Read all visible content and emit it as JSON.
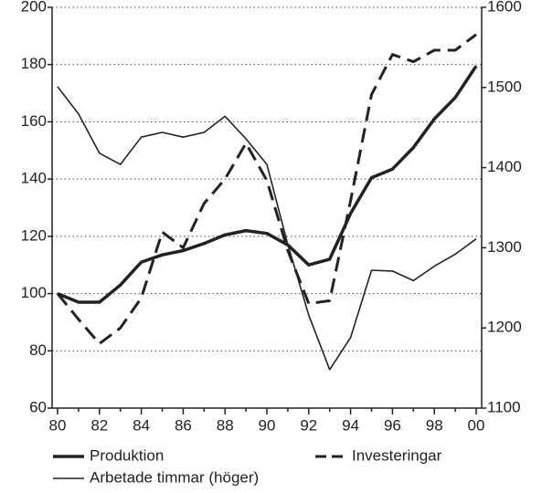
{
  "chart_data": {
    "type": "line",
    "categories": [
      "80",
      null,
      "82",
      null,
      "84",
      null,
      "86",
      null,
      "88",
      null,
      "90",
      null,
      "92",
      null,
      "94",
      null,
      "96",
      null,
      "98",
      null,
      "00"
    ],
    "series": [
      {
        "name": "Produktion",
        "color": "#222222",
        "width": 3.5,
        "dashed": false,
        "axis": "y",
        "values": [
          100,
          97,
          97,
          103,
          111,
          113.5,
          115,
          117.5,
          120.5,
          122,
          121,
          117,
          110,
          112,
          128,
          140.5,
          143.5,
          151,
          161,
          168.5,
          179.5
        ]
      },
      {
        "name": "Investeringar",
        "color": "#222222",
        "width": 3,
        "dashed": true,
        "axis": "y",
        "values": [
          100,
          91,
          82.5,
          88,
          98.5,
          121.5,
          116,
          131.5,
          140,
          152.5,
          139.5,
          115,
          96.5,
          97.5,
          132.5,
          169.5,
          183.5,
          181,
          185,
          185,
          190.5
        ]
      },
      {
        "name": "Arbetade timmar (höger)",
        "color": "#222222",
        "width": 1.6,
        "dashed": false,
        "axis": "y2",
        "values": [
          1501,
          1467,
          1418,
          1404,
          1438,
          1444,
          1438,
          1444,
          1464,
          1436,
          1404,
          1304,
          1216,
          1148,
          1188,
          1272,
          1271,
          1259,
          1277,
          1292,
          1311
        ]
      }
    ],
    "ylim": [
      60,
      200
    ],
    "yticks": [
      60,
      80,
      100,
      120,
      140,
      160,
      180,
      200
    ],
    "y2lim": [
      1100,
      1600
    ],
    "y2ticks": [
      1100,
      1200,
      1300,
      1400,
      1500,
      1600
    ],
    "grid": true
  }
}
